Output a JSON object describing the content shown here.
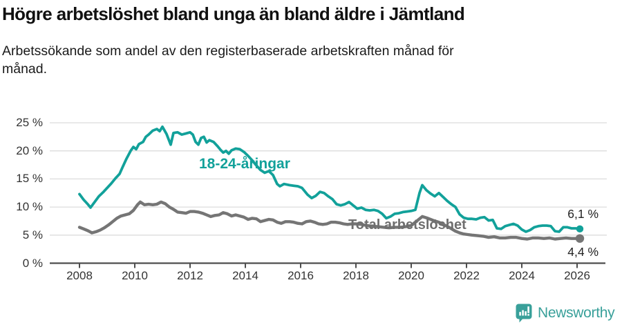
{
  "footer": {
    "brand": "Newsworthy",
    "logo_icon": "newsworthy-chart-bubble-icon"
  },
  "chart_data": {
    "type": "line",
    "title": "Högre arbetslöshet bland unga än bland äldre i Jämtland",
    "subtitle": "Arbetssökande som andel av den registerbaserade arbetskraften månad för månad.",
    "grid": "horizontal",
    "legend_position": "inline-labels",
    "x_axis": {
      "ticks": [
        2008,
        2010,
        2012,
        2014,
        2016,
        2018,
        2020,
        2022,
        2024,
        2026
      ],
      "range": [
        2007.9,
        2026.3
      ]
    },
    "y_axis": {
      "unit": "%",
      "range": [
        0,
        25
      ],
      "ticks": [
        {
          "value": 0,
          "label": "0 %"
        },
        {
          "value": 5,
          "label": "5 %"
        },
        {
          "value": 10,
          "label": "10 %"
        },
        {
          "value": 15,
          "label": "15 %"
        },
        {
          "value": 20,
          "label": "20 %"
        },
        {
          "value": 25,
          "label": "25 %"
        }
      ]
    },
    "series": [
      {
        "name": "18-24-åringar",
        "color": "#12a19a",
        "end_label": "6,1 %",
        "end_value": 6.1,
        "points": [
          [
            2008.0,
            12.3
          ],
          [
            2008.15,
            11.3
          ],
          [
            2008.3,
            10.5
          ],
          [
            2008.4,
            9.9
          ],
          [
            2008.55,
            10.9
          ],
          [
            2008.7,
            11.9
          ],
          [
            2008.85,
            12.6
          ],
          [
            2009.0,
            13.4
          ],
          [
            2009.15,
            14.2
          ],
          [
            2009.3,
            15.1
          ],
          [
            2009.45,
            15.9
          ],
          [
            2009.55,
            17.0
          ],
          [
            2009.7,
            18.6
          ],
          [
            2009.85,
            20.0
          ],
          [
            2009.95,
            20.7
          ],
          [
            2010.05,
            20.3
          ],
          [
            2010.15,
            21.2
          ],
          [
            2010.3,
            21.6
          ],
          [
            2010.4,
            22.5
          ],
          [
            2010.5,
            22.9
          ],
          [
            2010.65,
            23.6
          ],
          [
            2010.8,
            23.9
          ],
          [
            2010.9,
            23.5
          ],
          [
            2011.0,
            24.3
          ],
          [
            2011.15,
            23.0
          ],
          [
            2011.3,
            21.1
          ],
          [
            2011.4,
            23.2
          ],
          [
            2011.55,
            23.3
          ],
          [
            2011.7,
            22.9
          ],
          [
            2011.85,
            23.1
          ],
          [
            2012.0,
            23.3
          ],
          [
            2012.1,
            22.9
          ],
          [
            2012.2,
            21.6
          ],
          [
            2012.3,
            21.1
          ],
          [
            2012.4,
            22.3
          ],
          [
            2012.5,
            22.5
          ],
          [
            2012.6,
            21.5
          ],
          [
            2012.7,
            21.9
          ],
          [
            2012.85,
            21.6
          ],
          [
            2013.0,
            20.8
          ],
          [
            2013.1,
            20.2
          ],
          [
            2013.2,
            19.7
          ],
          [
            2013.3,
            20.0
          ],
          [
            2013.4,
            19.5
          ],
          [
            2013.5,
            20.1
          ],
          [
            2013.65,
            20.4
          ],
          [
            2013.8,
            20.3
          ],
          [
            2013.95,
            19.8
          ],
          [
            2014.1,
            19.1
          ],
          [
            2014.25,
            18.3
          ],
          [
            2014.4,
            17.4
          ],
          [
            2014.55,
            16.6
          ],
          [
            2014.7,
            16.1
          ],
          [
            2014.85,
            16.4
          ],
          [
            2015.0,
            15.7
          ],
          [
            2015.15,
            14.1
          ],
          [
            2015.25,
            13.7
          ],
          [
            2015.4,
            14.1
          ],
          [
            2015.6,
            13.9
          ],
          [
            2015.75,
            13.8
          ],
          [
            2015.9,
            13.7
          ],
          [
            2016.05,
            13.4
          ],
          [
            2016.25,
            12.2
          ],
          [
            2016.4,
            11.6
          ],
          [
            2016.55,
            12.0
          ],
          [
            2016.7,
            12.7
          ],
          [
            2016.85,
            12.5
          ],
          [
            2017.0,
            11.9
          ],
          [
            2017.15,
            11.4
          ],
          [
            2017.3,
            10.5
          ],
          [
            2017.45,
            10.3
          ],
          [
            2017.6,
            10.5
          ],
          [
            2017.75,
            10.9
          ],
          [
            2017.9,
            10.3
          ],
          [
            2018.05,
            9.7
          ],
          [
            2018.2,
            9.9
          ],
          [
            2018.35,
            9.5
          ],
          [
            2018.5,
            9.4
          ],
          [
            2018.65,
            9.5
          ],
          [
            2018.8,
            9.3
          ],
          [
            2018.95,
            8.8
          ],
          [
            2019.1,
            8.0
          ],
          [
            2019.25,
            8.3
          ],
          [
            2019.4,
            8.8
          ],
          [
            2019.55,
            8.9
          ],
          [
            2019.7,
            9.1
          ],
          [
            2019.85,
            9.2
          ],
          [
            2020.0,
            9.3
          ],
          [
            2020.15,
            9.5
          ],
          [
            2020.3,
            12.5
          ],
          [
            2020.4,
            13.9
          ],
          [
            2020.55,
            13.0
          ],
          [
            2020.7,
            12.4
          ],
          [
            2020.85,
            11.9
          ],
          [
            2021.0,
            12.5
          ],
          [
            2021.15,
            11.8
          ],
          [
            2021.3,
            11.1
          ],
          [
            2021.45,
            10.5
          ],
          [
            2021.6,
            10.0
          ],
          [
            2021.75,
            8.7
          ],
          [
            2021.9,
            8.1
          ],
          [
            2022.05,
            7.9
          ],
          [
            2022.2,
            7.9
          ],
          [
            2022.35,
            7.8
          ],
          [
            2022.5,
            8.1
          ],
          [
            2022.65,
            8.2
          ],
          [
            2022.8,
            7.6
          ],
          [
            2022.95,
            7.7
          ],
          [
            2023.1,
            6.2
          ],
          [
            2023.25,
            6.1
          ],
          [
            2023.4,
            6.6
          ],
          [
            2023.55,
            6.8
          ],
          [
            2023.7,
            7.0
          ],
          [
            2023.85,
            6.7
          ],
          [
            2024.0,
            6.0
          ],
          [
            2024.15,
            5.6
          ],
          [
            2024.3,
            5.9
          ],
          [
            2024.45,
            6.4
          ],
          [
            2024.6,
            6.6
          ],
          [
            2024.75,
            6.7
          ],
          [
            2024.9,
            6.7
          ],
          [
            2025.05,
            6.6
          ],
          [
            2025.2,
            5.7
          ],
          [
            2025.35,
            5.6
          ],
          [
            2025.5,
            6.4
          ],
          [
            2025.65,
            6.4
          ],
          [
            2025.8,
            6.2
          ],
          [
            2025.95,
            6.2
          ],
          [
            2026.1,
            6.1
          ]
        ]
      },
      {
        "name": "Total arbetslöshet",
        "color": "#757575",
        "end_label": "4,4 %",
        "end_value": 4.4,
        "points": [
          [
            2008.0,
            6.4
          ],
          [
            2008.15,
            6.1
          ],
          [
            2008.3,
            5.8
          ],
          [
            2008.45,
            5.4
          ],
          [
            2008.6,
            5.6
          ],
          [
            2008.75,
            5.9
          ],
          [
            2008.9,
            6.3
          ],
          [
            2009.05,
            6.8
          ],
          [
            2009.2,
            7.4
          ],
          [
            2009.35,
            8.0
          ],
          [
            2009.5,
            8.4
          ],
          [
            2009.65,
            8.6
          ],
          [
            2009.8,
            8.8
          ],
          [
            2009.95,
            9.4
          ],
          [
            2010.1,
            10.4
          ],
          [
            2010.2,
            10.9
          ],
          [
            2010.35,
            10.4
          ],
          [
            2010.5,
            10.5
          ],
          [
            2010.65,
            10.4
          ],
          [
            2010.8,
            10.5
          ],
          [
            2010.95,
            10.9
          ],
          [
            2011.1,
            10.6
          ],
          [
            2011.25,
            10.0
          ],
          [
            2011.4,
            9.6
          ],
          [
            2011.55,
            9.1
          ],
          [
            2011.7,
            9.0
          ],
          [
            2011.85,
            8.9
          ],
          [
            2012.0,
            9.2
          ],
          [
            2012.15,
            9.2
          ],
          [
            2012.3,
            9.1
          ],
          [
            2012.45,
            8.9
          ],
          [
            2012.6,
            8.6
          ],
          [
            2012.75,
            8.3
          ],
          [
            2012.9,
            8.5
          ],
          [
            2013.05,
            8.6
          ],
          [
            2013.2,
            9.0
          ],
          [
            2013.35,
            8.8
          ],
          [
            2013.5,
            8.4
          ],
          [
            2013.65,
            8.6
          ],
          [
            2013.8,
            8.4
          ],
          [
            2013.95,
            8.2
          ],
          [
            2014.1,
            7.8
          ],
          [
            2014.25,
            8.0
          ],
          [
            2014.4,
            7.9
          ],
          [
            2014.55,
            7.4
          ],
          [
            2014.7,
            7.6
          ],
          [
            2014.85,
            7.8
          ],
          [
            2015.0,
            7.7
          ],
          [
            2015.15,
            7.3
          ],
          [
            2015.3,
            7.1
          ],
          [
            2015.45,
            7.4
          ],
          [
            2015.6,
            7.4
          ],
          [
            2015.75,
            7.3
          ],
          [
            2015.9,
            7.1
          ],
          [
            2016.05,
            7.0
          ],
          [
            2016.2,
            7.4
          ],
          [
            2016.35,
            7.5
          ],
          [
            2016.5,
            7.3
          ],
          [
            2016.65,
            7.0
          ],
          [
            2016.8,
            6.9
          ],
          [
            2016.95,
            7.0
          ],
          [
            2017.1,
            7.3
          ],
          [
            2017.25,
            7.3
          ],
          [
            2017.4,
            7.2
          ],
          [
            2017.55,
            7.0
          ],
          [
            2017.7,
            6.9
          ],
          [
            2017.85,
            7.0
          ],
          [
            2018.0,
            7.0
          ],
          [
            2018.2,
            6.9
          ],
          [
            2018.4,
            6.7
          ],
          [
            2018.6,
            6.6
          ],
          [
            2018.8,
            6.5
          ],
          [
            2019.0,
            6.4
          ],
          [
            2019.2,
            6.3
          ],
          [
            2019.4,
            6.4
          ],
          [
            2019.6,
            6.4
          ],
          [
            2019.8,
            6.5
          ],
          [
            2020.0,
            6.7
          ],
          [
            2020.2,
            7.5
          ],
          [
            2020.4,
            8.3
          ],
          [
            2020.6,
            8.0
          ],
          [
            2020.8,
            7.6
          ],
          [
            2021.0,
            7.3
          ],
          [
            2021.2,
            6.8
          ],
          [
            2021.4,
            6.3
          ],
          [
            2021.6,
            5.7
          ],
          [
            2021.75,
            5.4
          ],
          [
            2021.9,
            5.2
          ],
          [
            2022.05,
            5.1
          ],
          [
            2022.2,
            5.0
          ],
          [
            2022.4,
            4.9
          ],
          [
            2022.6,
            4.8
          ],
          [
            2022.8,
            4.6
          ],
          [
            2023.0,
            4.7
          ],
          [
            2023.2,
            4.5
          ],
          [
            2023.4,
            4.5
          ],
          [
            2023.6,
            4.6
          ],
          [
            2023.8,
            4.6
          ],
          [
            2024.0,
            4.4
          ],
          [
            2024.2,
            4.3
          ],
          [
            2024.4,
            4.5
          ],
          [
            2024.6,
            4.5
          ],
          [
            2024.8,
            4.4
          ],
          [
            2025.0,
            4.5
          ],
          [
            2025.2,
            4.3
          ],
          [
            2025.4,
            4.4
          ],
          [
            2025.6,
            4.5
          ],
          [
            2025.8,
            4.4
          ],
          [
            2026.1,
            4.4
          ]
        ]
      }
    ]
  }
}
